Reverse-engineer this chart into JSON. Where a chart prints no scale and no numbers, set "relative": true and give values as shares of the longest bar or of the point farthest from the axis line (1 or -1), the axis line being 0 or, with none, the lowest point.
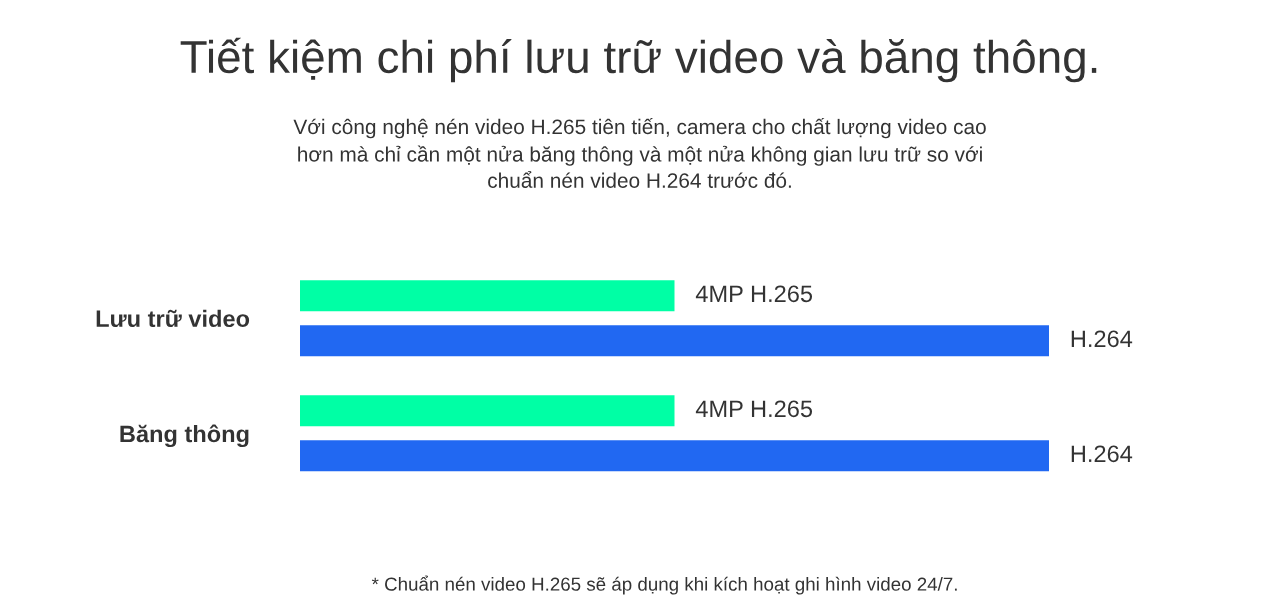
{
  "chart_data": {
    "type": "bar",
    "orientation": "horizontal",
    "relative": true,
    "title": "Tiết kiệm chi phí lưu trữ video và băng thông.",
    "subtitle": "Với công nghệ nén video H.265 tiên tiến, camera cho chất lượng video cao\nhơn mà chỉ cần một nửa băng thông và một nửa không gian lưu trữ so với\nchuẩn nén video H.264 trước đó.",
    "categories": [
      "Lưu trữ video",
      "Băng thông"
    ],
    "series": [
      {
        "name": "4MP H.265",
        "color": "#00ffa5",
        "values": [
          0.5,
          0.5
        ]
      },
      {
        "name": "H.264",
        "color": "#2168f2",
        "values": [
          1,
          1
        ]
      }
    ],
    "annotations": [
      "* Chuẩn nén video H.265 sẽ áp dụng khi kích hoạt ghi hình video 24/7."
    ]
  }
}
